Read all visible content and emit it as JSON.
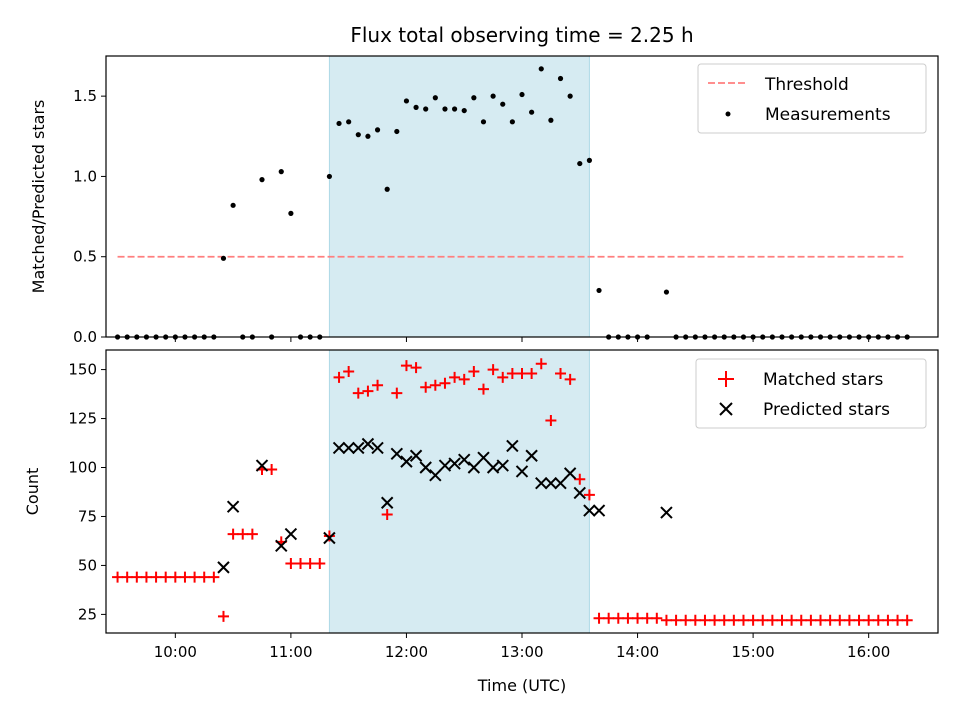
{
  "figure_title": "Flux total observing time = 2.25 h",
  "colors": {
    "threshold": "#ff7f7f",
    "measurement": "#000000",
    "matched": "#ff0000",
    "predicted": "#000000",
    "highlight": "#add8e6"
  },
  "chart_data": [
    {
      "type": "scatter",
      "title": "Flux total observing time = 2.25 h",
      "xlabel": "",
      "ylabel": "Matched/Predicted stars",
      "xlim": [
        "09:24",
        "16:36"
      ],
      "ylim": [
        0,
        1.75
      ],
      "yticks": [
        0.0,
        0.5,
        1.0,
        1.5
      ],
      "ytick_labels": [
        "0.0",
        "0.5",
        "1.0",
        "1.5"
      ],
      "grid": false,
      "legend_position": "top-right",
      "highlight_span": [
        "11:20",
        "13:35"
      ],
      "series": [
        {
          "name": "Threshold",
          "kind": "dashed-line",
          "x": [
            "09:30",
            "16:18"
          ],
          "y": [
            0.5,
            0.5
          ]
        },
        {
          "name": "Measurements",
          "kind": "dots",
          "points": [
            [
              "09:30",
              0
            ],
            [
              "09:35",
              0
            ],
            [
              "09:40",
              0
            ],
            [
              "09:45",
              0
            ],
            [
              "09:50",
              0
            ],
            [
              "09:55",
              0
            ],
            [
              "10:00",
              0
            ],
            [
              "10:05",
              0
            ],
            [
              "10:10",
              0
            ],
            [
              "10:15",
              0
            ],
            [
              "10:20",
              0
            ],
            [
              "10:25",
              0.49
            ],
            [
              "10:30",
              0.82
            ],
            [
              "10:35",
              0
            ],
            [
              "10:40",
              0
            ],
            [
              "10:45",
              0.98
            ],
            [
              "10:50",
              0
            ],
            [
              "10:55",
              1.03
            ],
            [
              "11:00",
              0.77
            ],
            [
              "11:05",
              0
            ],
            [
              "11:10",
              0
            ],
            [
              "11:15",
              0
            ],
            [
              "11:20",
              1.0
            ],
            [
              "11:25",
              1.33
            ],
            [
              "11:30",
              1.34
            ],
            [
              "11:35",
              1.26
            ],
            [
              "11:40",
              1.25
            ],
            [
              "11:45",
              1.29
            ],
            [
              "11:50",
              0.92
            ],
            [
              "11:55",
              1.28
            ],
            [
              "12:00",
              1.47
            ],
            [
              "12:05",
              1.43
            ],
            [
              "12:10",
              1.42
            ],
            [
              "12:15",
              1.49
            ],
            [
              "12:20",
              1.42
            ],
            [
              "12:25",
              1.42
            ],
            [
              "12:30",
              1.41
            ],
            [
              "12:35",
              1.49
            ],
            [
              "12:40",
              1.34
            ],
            [
              "12:45",
              1.5
            ],
            [
              "12:50",
              1.45
            ],
            [
              "12:55",
              1.34
            ],
            [
              "13:00",
              1.51
            ],
            [
              "13:05",
              1.4
            ],
            [
              "13:10",
              1.67
            ],
            [
              "13:15",
              1.35
            ],
            [
              "13:20",
              1.61
            ],
            [
              "13:25",
              1.5
            ],
            [
              "13:30",
              1.08
            ],
            [
              "13:35",
              1.1
            ],
            [
              "13:40",
              0.29
            ],
            [
              "13:45",
              0
            ],
            [
              "13:50",
              0
            ],
            [
              "13:55",
              0
            ],
            [
              "14:00",
              0
            ],
            [
              "14:05",
              0
            ],
            [
              "14:15",
              0.28
            ],
            [
              "14:20",
              0
            ],
            [
              "14:25",
              0
            ],
            [
              "14:30",
              0
            ],
            [
              "14:35",
              0
            ],
            [
              "14:40",
              0
            ],
            [
              "14:45",
              0
            ],
            [
              "14:50",
              0
            ],
            [
              "14:55",
              0
            ],
            [
              "15:00",
              0
            ],
            [
              "15:05",
              0
            ],
            [
              "15:10",
              0
            ],
            [
              "15:15",
              0
            ],
            [
              "15:20",
              0
            ],
            [
              "15:25",
              0
            ],
            [
              "15:30",
              0
            ],
            [
              "15:35",
              0
            ],
            [
              "15:40",
              0
            ],
            [
              "15:45",
              0
            ],
            [
              "15:50",
              0
            ],
            [
              "15:55",
              0
            ],
            [
              "16:00",
              0
            ],
            [
              "16:05",
              0
            ],
            [
              "16:10",
              0
            ],
            [
              "16:15",
              0
            ],
            [
              "16:20",
              0
            ]
          ]
        }
      ]
    },
    {
      "type": "scatter",
      "title": "",
      "xlabel": "Time (UTC)",
      "ylabel": "Count",
      "xlim": [
        "09:24",
        "16:36"
      ],
      "ylim": [
        15.5,
        160
      ],
      "xticks": [
        "10:00",
        "11:00",
        "12:00",
        "13:00",
        "14:00",
        "15:00",
        "16:00"
      ],
      "yticks": [
        25,
        50,
        75,
        100,
        125,
        150
      ],
      "grid": false,
      "legend_position": "top-right",
      "highlight_span": [
        "11:20",
        "13:35"
      ],
      "series": [
        {
          "name": "Matched stars",
          "marker": "+",
          "points": [
            [
              "09:30",
              44
            ],
            [
              "09:35",
              44
            ],
            [
              "09:40",
              44
            ],
            [
              "09:45",
              44
            ],
            [
              "09:50",
              44
            ],
            [
              "09:55",
              44
            ],
            [
              "10:00",
              44
            ],
            [
              "10:05",
              44
            ],
            [
              "10:10",
              44
            ],
            [
              "10:15",
              44
            ],
            [
              "10:20",
              44
            ],
            [
              "10:25",
              24
            ],
            [
              "10:30",
              66
            ],
            [
              "10:35",
              66
            ],
            [
              "10:40",
              66
            ],
            [
              "10:45",
              99
            ],
            [
              "10:50",
              99
            ],
            [
              "10:55",
              62
            ],
            [
              "11:00",
              51
            ],
            [
              "11:05",
              51
            ],
            [
              "11:10",
              51
            ],
            [
              "11:15",
              51
            ],
            [
              "11:20",
              65
            ],
            [
              "11:25",
              146
            ],
            [
              "11:30",
              149
            ],
            [
              "11:35",
              138
            ],
            [
              "11:40",
              139
            ],
            [
              "11:45",
              142
            ],
            [
              "11:50",
              76
            ],
            [
              "11:55",
              138
            ],
            [
              "12:00",
              152
            ],
            [
              "12:05",
              151
            ],
            [
              "12:10",
              141
            ],
            [
              "12:15",
              142
            ],
            [
              "12:20",
              143
            ],
            [
              "12:25",
              146
            ],
            [
              "12:30",
              145
            ],
            [
              "12:35",
              149
            ],
            [
              "12:40",
              140
            ],
            [
              "12:45",
              150
            ],
            [
              "12:50",
              146
            ],
            [
              "12:55",
              148
            ],
            [
              "13:00",
              148
            ],
            [
              "13:05",
              148
            ],
            [
              "13:10",
              153
            ],
            [
              "13:15",
              124
            ],
            [
              "13:20",
              148
            ],
            [
              "13:25",
              145
            ],
            [
              "13:30",
              94
            ],
            [
              "13:35",
              86
            ],
            [
              "13:40",
              23
            ],
            [
              "13:45",
              23
            ],
            [
              "13:50",
              23
            ],
            [
              "13:55",
              23
            ],
            [
              "14:00",
              23
            ],
            [
              "14:05",
              23
            ],
            [
              "14:10",
              23
            ],
            [
              "14:15",
              22
            ],
            [
              "14:20",
              22
            ],
            [
              "14:25",
              22
            ],
            [
              "14:30",
              22
            ],
            [
              "14:35",
              22
            ],
            [
              "14:40",
              22
            ],
            [
              "14:45",
              22
            ],
            [
              "14:50",
              22
            ],
            [
              "14:55",
              22
            ],
            [
              "15:00",
              22
            ],
            [
              "15:05",
              22
            ],
            [
              "15:10",
              22
            ],
            [
              "15:15",
              22
            ],
            [
              "15:20",
              22
            ],
            [
              "15:25",
              22
            ],
            [
              "15:30",
              22
            ],
            [
              "15:35",
              22
            ],
            [
              "15:40",
              22
            ],
            [
              "15:45",
              22
            ],
            [
              "15:50",
              22
            ],
            [
              "15:55",
              22
            ],
            [
              "16:00",
              22
            ],
            [
              "16:05",
              22
            ],
            [
              "16:10",
              22
            ],
            [
              "16:15",
              22
            ],
            [
              "16:20",
              22
            ]
          ]
        },
        {
          "name": "Predicted stars",
          "marker": "x",
          "points": [
            [
              "10:25",
              49
            ],
            [
              "10:30",
              80
            ],
            [
              "10:45",
              101
            ],
            [
              "10:55",
              60
            ],
            [
              "11:00",
              66
            ],
            [
              "11:20",
              64
            ],
            [
              "11:25",
              110
            ],
            [
              "11:30",
              110
            ],
            [
              "11:35",
              110
            ],
            [
              "11:40",
              112
            ],
            [
              "11:45",
              110
            ],
            [
              "11:50",
              82
            ],
            [
              "11:55",
              107
            ],
            [
              "12:00",
              103
            ],
            [
              "12:05",
              106
            ],
            [
              "12:10",
              100
            ],
            [
              "12:15",
              96
            ],
            [
              "12:20",
              101
            ],
            [
              "12:25",
              102
            ],
            [
              "12:30",
              104
            ],
            [
              "12:35",
              100
            ],
            [
              "12:40",
              105
            ],
            [
              "12:45",
              100
            ],
            [
              "12:50",
              101
            ],
            [
              "12:55",
              111
            ],
            [
              "13:00",
              98
            ],
            [
              "13:05",
              106
            ],
            [
              "13:10",
              92
            ],
            [
              "13:15",
              92
            ],
            [
              "13:20",
              92
            ],
            [
              "13:25",
              97
            ],
            [
              "13:30",
              87
            ],
            [
              "13:35",
              78
            ],
            [
              "13:40",
              78
            ],
            [
              "14:15",
              77
            ]
          ]
        }
      ]
    }
  ]
}
